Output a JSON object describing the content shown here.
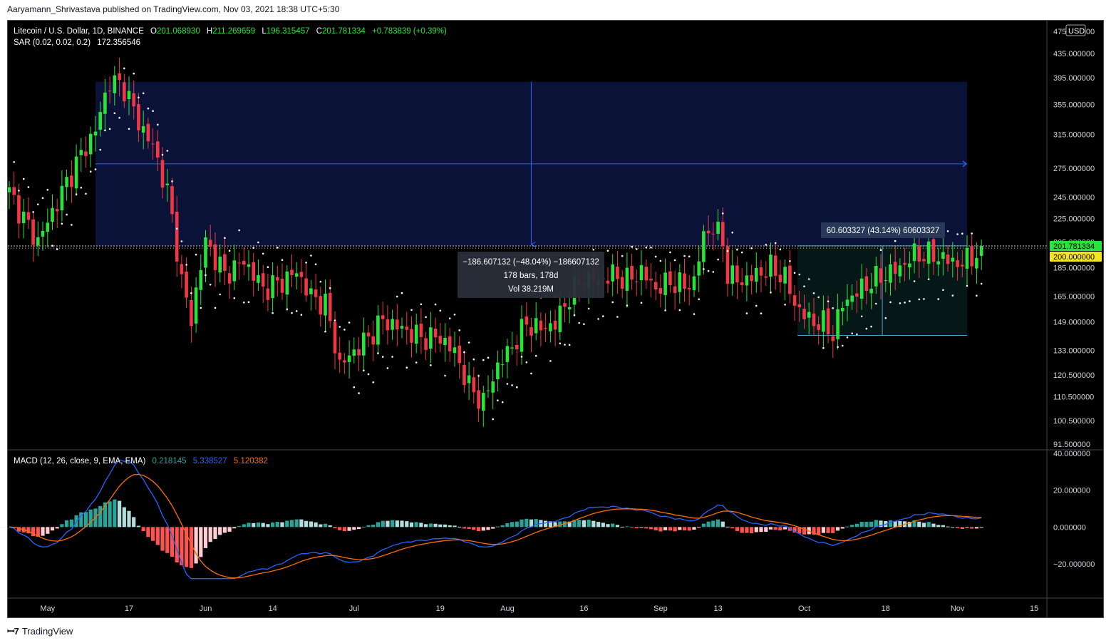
{
  "header": {
    "attribution": "Aaryamann_Shrivastava published on TradingView.com, Nov 03, 2021 18:38 UTC+5:30"
  },
  "legend": {
    "symbol": "Litecoin / U.S. Dollar, 1D, BINANCE",
    "open_label": "O",
    "open": "201.068930",
    "high_label": "H",
    "high": "211.269659",
    "low_label": "L",
    "low": "196.315457",
    "close_label": "C",
    "close": "201.781334",
    "change": "+0.783839 (+0.39%)",
    "sar_label": "SAR (0.02, 0.02, 0.2)",
    "sar_value": "172.356546",
    "macd_label": "MACD (12, 26, close, 9, EMA, EMA)",
    "macd_hist": "0.218145",
    "macd_line": "5.338527",
    "macd_signal": "5.120382"
  },
  "currency": "USD",
  "price_badges": {
    "last": "201.781334",
    "level": "200.000000"
  },
  "measure_down": {
    "line1": "−186.607132 (−48.04%) −186607132",
    "line2": "178 bars, 178d",
    "line3": "Vol 38.219M"
  },
  "measure_up": {
    "line1": "60.603327 (43.14%) 60603327"
  },
  "footer": {
    "brand": "TradingView",
    "logo": "tradingview-logo-icon"
  },
  "colors": {
    "up": "#26e43a",
    "down": "#f23645",
    "sar": "#ffffff",
    "macd": "#2962ff",
    "signal": "#ff6d00",
    "hist_up_strong": "#26a69a",
    "hist_up_weak": "#b2dfdb",
    "hist_down_strong": "#ff5252",
    "hist_down_weak": "#ffcdd2"
  },
  "chart_data": {
    "type": "candlestick",
    "price_axis_ticks": [
      "475.000000",
      "435.000000",
      "395.000000",
      "355.000000",
      "315.000000",
      "275.000000",
      "245.000000",
      "225.000000",
      "205.000000",
      "185.000000",
      "165.000000",
      "149.000000",
      "133.000000",
      "120.500000",
      "110.500000",
      "100.500000",
      "91.500000"
    ],
    "macd_axis_ticks": [
      "40.000000",
      "20.000000",
      "0.000000",
      "−20.000000"
    ],
    "time_axis_labels": [
      "May",
      "17",
      "Jun",
      "14",
      "Jul",
      "19",
      "Aug",
      "16",
      "Sep",
      "13",
      "Oct",
      "18",
      "Nov",
      "15"
    ],
    "price_keypoints": [
      {
        "t": 0,
        "p": 250
      },
      {
        "t": 3,
        "p": 225
      },
      {
        "t": 6,
        "p": 205
      },
      {
        "t": 10,
        "p": 240
      },
      {
        "t": 14,
        "p": 280
      },
      {
        "t": 18,
        "p": 320
      },
      {
        "t": 21,
        "p": 390
      },
      {
        "t": 24,
        "p": 380
      },
      {
        "t": 27,
        "p": 330
      },
      {
        "t": 30,
        "p": 300
      },
      {
        "t": 33,
        "p": 250
      },
      {
        "t": 36,
        "p": 175
      },
      {
        "t": 38,
        "p": 150
      },
      {
        "t": 41,
        "p": 205
      },
      {
        "t": 45,
        "p": 180
      },
      {
        "t": 49,
        "p": 190
      },
      {
        "t": 53,
        "p": 170
      },
      {
        "t": 57,
        "p": 175
      },
      {
        "t": 60,
        "p": 182
      },
      {
        "t": 63,
        "p": 165
      },
      {
        "t": 66,
        "p": 160
      },
      {
        "t": 69,
        "p": 125
      },
      {
        "t": 71,
        "p": 130
      },
      {
        "t": 75,
        "p": 140
      },
      {
        "t": 78,
        "p": 150
      },
      {
        "t": 82,
        "p": 145
      },
      {
        "t": 86,
        "p": 140
      },
      {
        "t": 90,
        "p": 140
      },
      {
        "t": 93,
        "p": 132
      },
      {
        "t": 96,
        "p": 115
      },
      {
        "t": 99,
        "p": 108
      },
      {
        "t": 102,
        "p": 125
      },
      {
        "t": 105,
        "p": 135
      },
      {
        "t": 108,
        "p": 148
      },
      {
        "t": 111,
        "p": 145
      },
      {
        "t": 114,
        "p": 148
      },
      {
        "t": 117,
        "p": 165
      },
      {
        "t": 120,
        "p": 178
      },
      {
        "t": 123,
        "p": 175
      },
      {
        "t": 126,
        "p": 180
      },
      {
        "t": 129,
        "p": 176
      },
      {
        "t": 132,
        "p": 182
      },
      {
        "t": 135,
        "p": 170
      },
      {
        "t": 138,
        "p": 175
      },
      {
        "t": 141,
        "p": 172
      },
      {
        "t": 143,
        "p": 175
      },
      {
        "t": 145,
        "p": 210
      },
      {
        "t": 147,
        "p": 218
      },
      {
        "t": 149,
        "p": 205
      },
      {
        "t": 150,
        "p": 180
      },
      {
        "t": 153,
        "p": 175
      },
      {
        "t": 156,
        "p": 180
      },
      {
        "t": 159,
        "p": 185
      },
      {
        "t": 162,
        "p": 178
      },
      {
        "t": 164,
        "p": 160
      },
      {
        "t": 167,
        "p": 150
      },
      {
        "t": 170,
        "p": 148
      },
      {
        "t": 172,
        "p": 142
      },
      {
        "t": 174,
        "p": 160
      },
      {
        "t": 177,
        "p": 168
      },
      {
        "t": 180,
        "p": 175
      },
      {
        "t": 183,
        "p": 180
      },
      {
        "t": 186,
        "p": 185
      },
      {
        "t": 189,
        "p": 195
      },
      {
        "t": 192,
        "p": 195
      },
      {
        "t": 195,
        "p": 192
      },
      {
        "t": 198,
        "p": 188
      },
      {
        "t": 201,
        "p": 192
      },
      {
        "t": 203,
        "p": 202
      }
    ],
    "measurements": [
      {
        "direction": "down",
        "from_price": 388.4,
        "to_price": 201.8,
        "change": "−186.607132",
        "percent": "−48.04%",
        "bars": 178
      },
      {
        "direction": "up",
        "from_price": 141.2,
        "to_price": 201.8,
        "change": "60.603327",
        "percent": "43.14%"
      }
    ],
    "horizontal_levels": [
      201.781334,
      200.0
    ]
  }
}
